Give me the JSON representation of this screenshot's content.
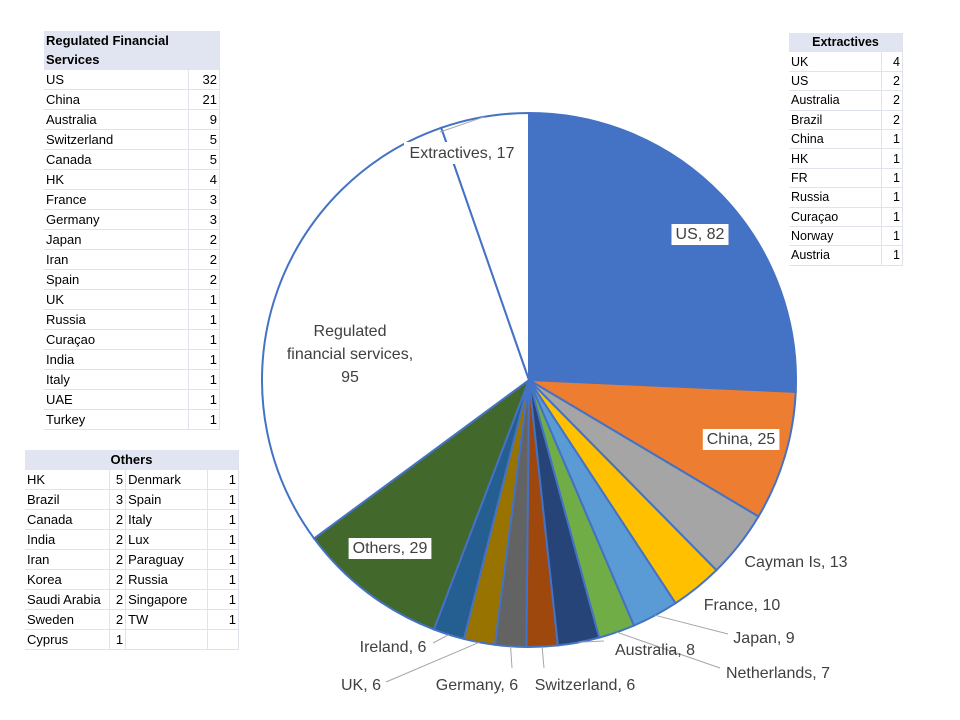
{
  "chart_data": {
    "type": "pie",
    "slices": [
      {
        "label": "US",
        "value": 82,
        "color": "#4472C4",
        "display": "US, 82"
      },
      {
        "label": "China",
        "value": 25,
        "color": "#ED7D31",
        "display": "China, 25"
      },
      {
        "label": "Cayman Is",
        "value": 13,
        "color": "#A5A5A5",
        "display": "Cayman Is, 13"
      },
      {
        "label": "France",
        "value": 10,
        "color": "#FFC000",
        "display": "France, 10"
      },
      {
        "label": "Japan",
        "value": 9,
        "color": "#5B9BD5",
        "display": "Japan, 9"
      },
      {
        "label": "Netherlands",
        "value": 7,
        "color": "#70AD47",
        "display": "Netherlands, 7"
      },
      {
        "label": "Australia",
        "value": 8,
        "color": "#264478",
        "display": "Australia, 8"
      },
      {
        "label": "Switzerland",
        "value": 6,
        "color": "#9E480E",
        "display": "Switzerland, 6"
      },
      {
        "label": "Germany",
        "value": 6,
        "color": "#636363",
        "display": "Germany, 6"
      },
      {
        "label": "UK",
        "value": 6,
        "color": "#997300",
        "display": "UK, 6"
      },
      {
        "label": "Ireland",
        "value": 6,
        "color": "#255E91",
        "display": "Ireland, 6"
      },
      {
        "label": "Others",
        "value": 29,
        "color": "#43682B",
        "display": "Others, 29"
      },
      {
        "label": "Regulated financial services",
        "value": 95,
        "color": "#FFFFFF",
        "display": "Regulated financial services, 95"
      },
      {
        "label": "Extractives",
        "value": 17,
        "color": "#FFFFFF",
        "display": "Extractives, 17"
      }
    ],
    "regulated_label_lines": [
      "Regulated",
      "financial services,",
      "95"
    ]
  },
  "tables": {
    "regulated": {
      "header": "Regulated Financial Services",
      "rows": [
        [
          "US",
          "32"
        ],
        [
          "China",
          "21"
        ],
        [
          "Australia",
          "9"
        ],
        [
          "Switzerland",
          "5"
        ],
        [
          "Canada",
          "5"
        ],
        [
          "HK",
          "4"
        ],
        [
          "France",
          "3"
        ],
        [
          "Germany",
          "3"
        ],
        [
          "Japan",
          "2"
        ],
        [
          "Iran",
          "2"
        ],
        [
          "Spain",
          "2"
        ],
        [
          "UK",
          "1"
        ],
        [
          "Russia",
          "1"
        ],
        [
          "Curaçao",
          "1"
        ],
        [
          "India",
          "1"
        ],
        [
          "Italy",
          "1"
        ],
        [
          "UAE",
          "1"
        ],
        [
          "Turkey",
          "1"
        ]
      ]
    },
    "extractives": {
      "header": "Extractives",
      "rows": [
        [
          "UK",
          "4"
        ],
        [
          "US",
          "2"
        ],
        [
          "Australia",
          "2"
        ],
        [
          "Brazil",
          "2"
        ],
        [
          "China",
          "1"
        ],
        [
          "HK",
          "1"
        ],
        [
          "FR",
          "1"
        ],
        [
          "Russia",
          "1"
        ],
        [
          "Curaçao",
          "1"
        ],
        [
          "Norway",
          "1"
        ],
        [
          "Austria",
          "1"
        ]
      ]
    },
    "others": {
      "header": "Others",
      "rows": [
        [
          "HK",
          "5",
          "Denmark",
          "1"
        ],
        [
          "Brazil",
          "3",
          "Spain",
          "1"
        ],
        [
          "Canada",
          "2",
          "Italy",
          "1"
        ],
        [
          "India",
          "2",
          "Lux",
          "1"
        ],
        [
          "Iran",
          "2",
          "Paraguay",
          "1"
        ],
        [
          "Korea",
          "2",
          "Russia",
          "1"
        ],
        [
          "Saudi Arabia",
          "2",
          "Singapore",
          "1"
        ],
        [
          "Sweden",
          "2",
          "TW",
          "1"
        ],
        [
          "Cyprus",
          "1",
          "",
          ""
        ]
      ]
    }
  }
}
